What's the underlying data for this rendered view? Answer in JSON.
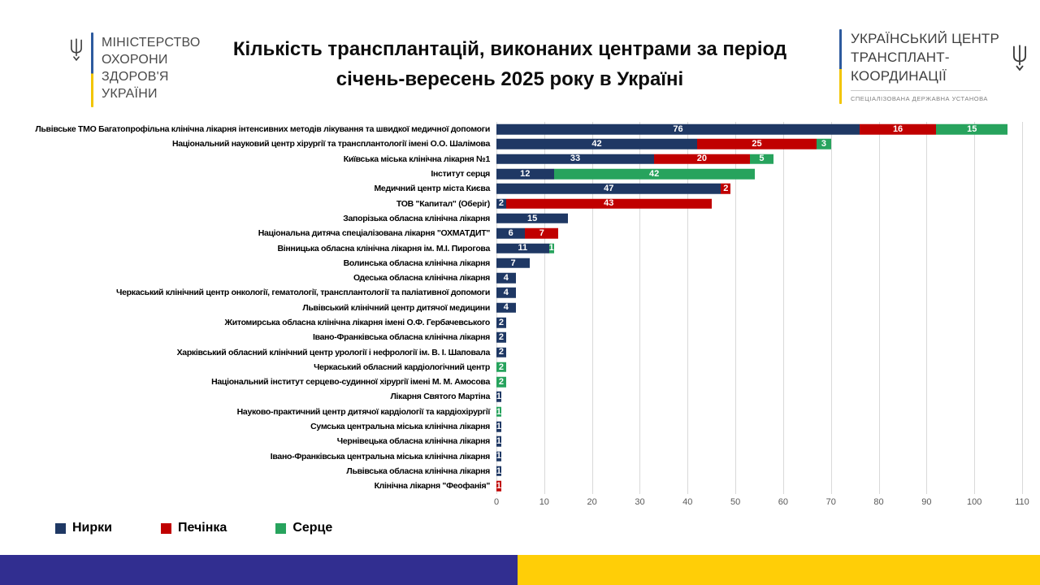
{
  "header": {
    "moh_logo": {
      "lines": [
        "МІНІСТЕРСТВО",
        "ОХОРОНИ",
        "ЗДОРОВ'Я",
        "УКРАЇНИ"
      ]
    },
    "title_line1": "Кількість трансплантацій, виконаних центрами за період",
    "title_line2": "січень-вересень 2025 року в Україні",
    "uctc_logo": {
      "lines": [
        "УКРАЇНСЬКИЙ ЦЕНТР",
        "ТРАНСПЛАНТ-",
        "КООРДИНАЦІЇ"
      ],
      "subtitle": "СПЕЦІАЛІЗОВАНА ДЕРЖАВНА УСТАНОВА"
    }
  },
  "chart_data": {
    "type": "bar",
    "orientation": "horizontal",
    "stacked": true,
    "grid": true,
    "legend_position": "bottom",
    "xlim": [
      0,
      110
    ],
    "x_ticks": [
      0,
      10,
      20,
      30,
      40,
      50,
      60,
      70,
      80,
      90,
      100,
      110
    ],
    "categories": [
      "Львівське ТМО Багатопрофільна клінічна лікарня інтенсивних методів лікування та швидкої медичної допомоги",
      "Національний науковий центр хірургії та трансплантології імені О.О. Шалімова",
      "Київська міська клінічна лікарня №1",
      "Інститут серця",
      "Медичний центр міста Києва",
      "ТОВ \"Капитал\" (Оберіг)",
      "Запорізька обласна клінічна лікарня",
      "Національна дитяча спеціалізована лікарня \"ОХМАТДИТ\"",
      "Вінницька обласна клінічна лікарня ім. М.І. Пирогова",
      "Волинська обласна клінічна лікарня",
      "Одеська обласна клінічна лікарня",
      "Черкаський клінічний центр онкології, гематології, трансплантології та паліативної допомоги",
      "Львівський клінічний центр дитячої медицини",
      "Житомирська обласна клінічна лікарня імені О.Ф. Гербачевського",
      "Івано-Франківська обласна клінічна лікарня",
      "Харківський обласний клінічний центр урології і нефрології ім. В. І. Шаповала",
      "Черкаський обласний кардіологічний центр",
      "Національний інститут серцево-судинної хірургії імені М. М. Амосова",
      "Лікарня Святого Мартіна",
      "Науково-практичний центр дитячої кардіології та кардіохірургії",
      "Сумська центральна міська клінічна лікарня",
      "Чернівецька обласна клінічна лікарня",
      "Івано-Франківська центральна міська клінічна лікарня",
      "Львівська обласна клінічна лікарня",
      "Клінічна лікарня \"Феофанія\""
    ],
    "series": [
      {
        "name": "Нирки",
        "key": "kidneys",
        "color": "#1F3864",
        "values": [
          76,
          42,
          33,
          12,
          47,
          2,
          15,
          6,
          11,
          7,
          4,
          4,
          4,
          2,
          2,
          2,
          0,
          0,
          1,
          0,
          1,
          1,
          1,
          1,
          0
        ]
      },
      {
        "name": "Печінка",
        "key": "liver",
        "color": "#C00000",
        "values": [
          16,
          25,
          20,
          0,
          2,
          43,
          0,
          7,
          0,
          0,
          0,
          0,
          0,
          0,
          0,
          0,
          0,
          0,
          0,
          0,
          0,
          0,
          0,
          0,
          1
        ]
      },
      {
        "name": "Серце",
        "key": "heart",
        "color": "#27A35D",
        "values": [
          15,
          3,
          5,
          42,
          0,
          0,
          0,
          0,
          1,
          0,
          0,
          0,
          0,
          0,
          0,
          0,
          2,
          2,
          0,
          1,
          0,
          0,
          0,
          0,
          0
        ]
      }
    ]
  },
  "footer": {
    "flag_blue": "#312E90",
    "flag_yellow": "#FFCE07"
  }
}
